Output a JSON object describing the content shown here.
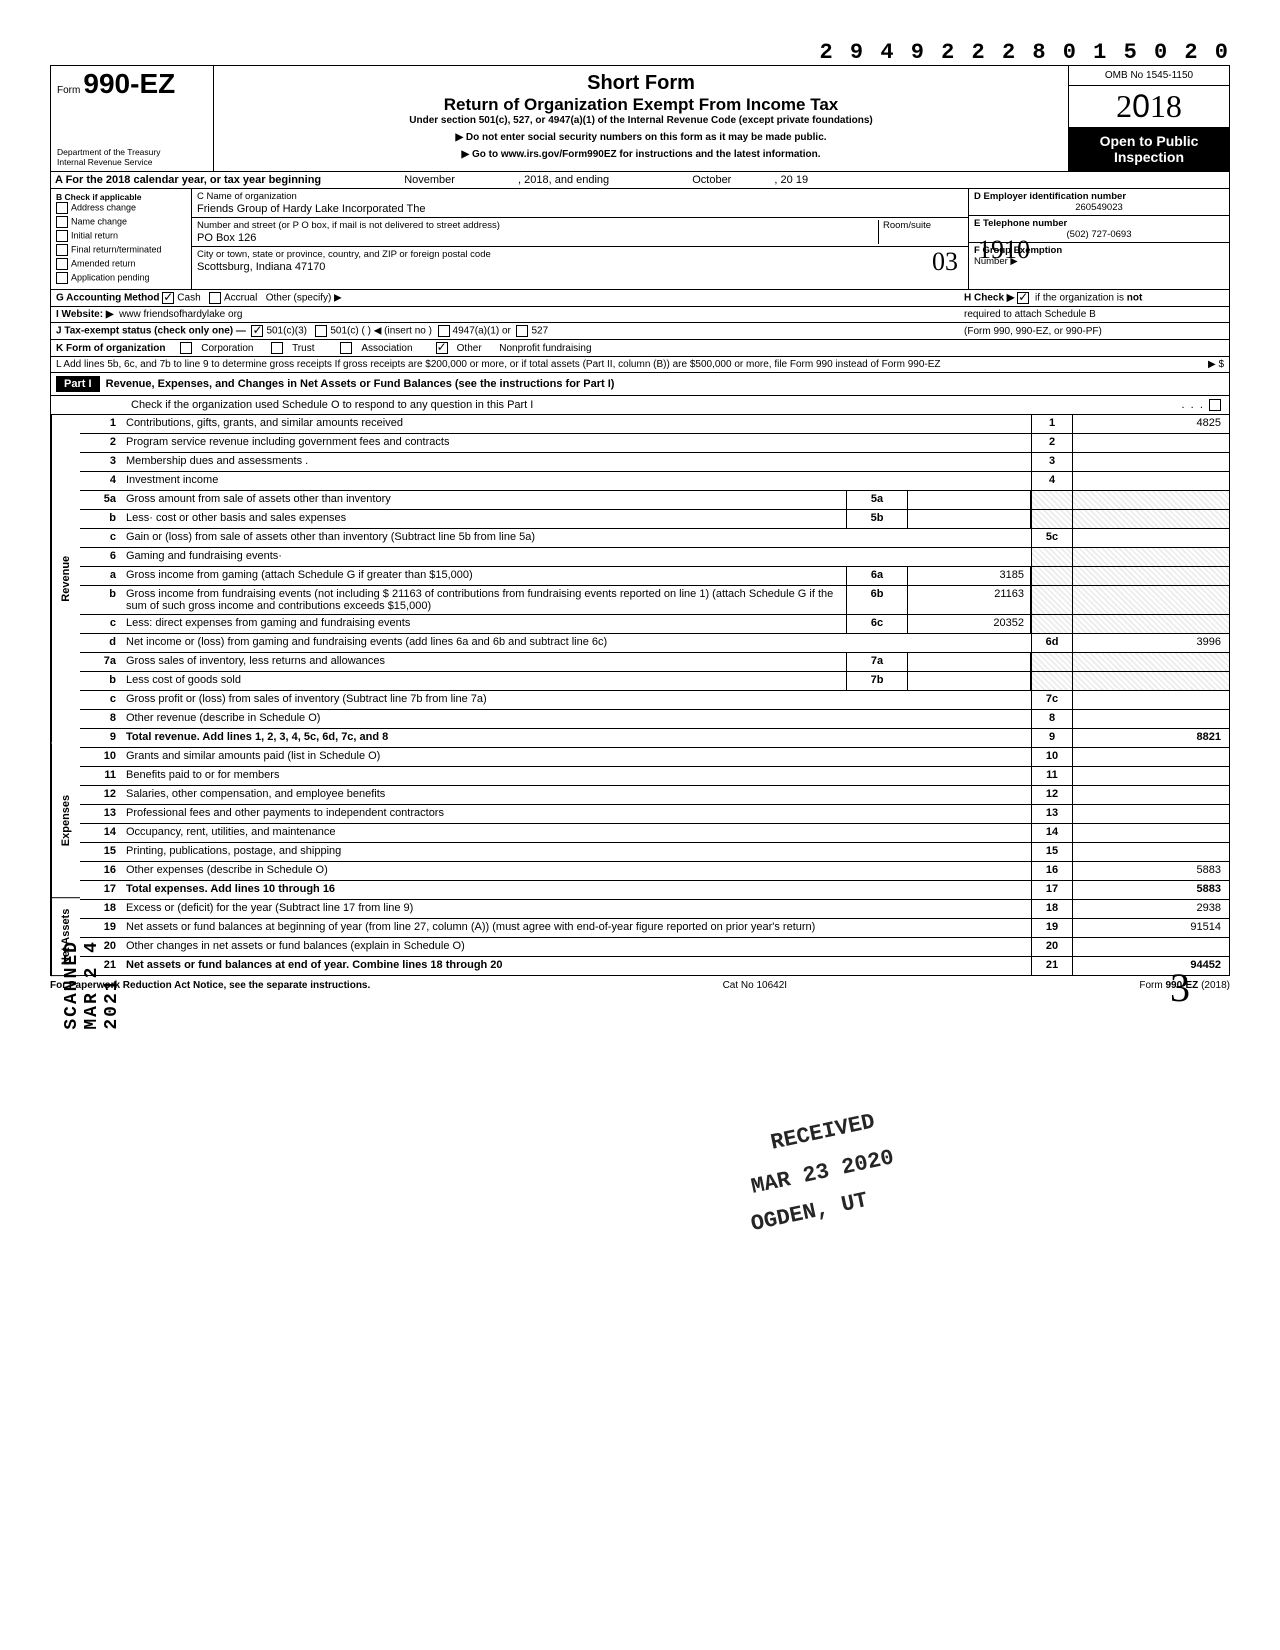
{
  "topNumber": "2 9 4 9 2 2 2 8 0 1 5 0 2 0",
  "header": {
    "formPrefix": "Form",
    "formNumber": "990-EZ",
    "dept": "Department of the Treasury\nInternal Revenue Service",
    "shortForm": "Short Form",
    "title": "Return of Organization Exempt From Income Tax",
    "underSection": "Under section 501(c), 527, or 4947(a)(1) of the Internal Revenue Code (except private foundations)",
    "ssnLine": "▶ Do not enter social security numbers on this form as it may be made public.",
    "gotoLine": "▶ Go to www.irs.gov/Form990EZ for instructions and the latest information.",
    "omb": "OMB No 1545-1150",
    "year": "2018",
    "openPublic": "Open to Public Inspection"
  },
  "rowA": {
    "label": "A For the 2018 calendar year, or tax year beginning",
    "month": "November",
    "mid": ", 2018, and ending",
    "monthEnd": "October",
    "yearEnd": ", 20   19"
  },
  "B": {
    "label": "B  Check if applicable",
    "items": [
      "Address change",
      "Name change",
      "Initial return",
      "Final return/terminated",
      "Amended return",
      "Application pending"
    ]
  },
  "C": {
    "nameLbl": "C  Name of organization",
    "name": "Friends Group of Hardy Lake Incorporated The",
    "streetLbl": "Number and street (or P O  box, if mail is not delivered to street address)",
    "roomLbl": "Room/suite",
    "street": "PO Box 126",
    "cityLbl": "City or town, state or province, country, and ZIP or foreign postal code",
    "city": "Scottsburg, Indiana 47170"
  },
  "D": {
    "lbl": "D Employer identification number",
    "val": "260549023"
  },
  "E": {
    "lbl": "E Telephone number",
    "val": "(502) 727-0693"
  },
  "F": {
    "lbl": "F Group Exemption",
    "lbl2": "Number ▶"
  },
  "G": {
    "lbl": "G  Accounting Method",
    "opts": [
      "Cash",
      "Accrual"
    ],
    "other": "Other (specify) ▶",
    "checked": 0
  },
  "H": {
    "lbl": "H  Check ▶",
    "txt": "if the organization is not required to attach Schedule B (Form 990, 990-EZ, or 990-PF)",
    "checked": true
  },
  "I": {
    "lbl": "I  Website: ▶",
    "val": "www friendsofhardylake org"
  },
  "J": {
    "lbl": "J  Tax-exempt status (check only one) —",
    "opts": [
      "501(c)(3)",
      "501(c) (        ) ◀ (insert no )",
      "4947(a)(1) or",
      "527"
    ],
    "checked": 0
  },
  "K": {
    "lbl": "K  Form of organization",
    "opts": [
      "Corporation",
      "Trust",
      "Association",
      "Other"
    ],
    "checked": 3,
    "otherTxt": "Nonprofit fundraising"
  },
  "L": {
    "txt": "L  Add lines 5b, 6c, and 7b to line 9 to determine gross receipts  If gross receipts are $200,000 or more, or if total assets (Part II, column (B)) are $500,000 or more, file Form 990 instead of Form 990-EZ",
    "arrow": "▶   $"
  },
  "part1": {
    "header": "Part I",
    "title": "Revenue, Expenses, and Changes in Net Assets or Fund Balances (see the instructions for Part I)",
    "check": "Check if the organization used Schedule O to respond to any question in this Part I"
  },
  "sideLabels": {
    "rev": "Revenue",
    "exp": "Expenses",
    "net": "Net Assets"
  },
  "lines": [
    {
      "n": "1",
      "d": "Contributions, gifts, grants, and similar amounts received",
      "rn": "1",
      "v": "4825"
    },
    {
      "n": "2",
      "d": "Program service revenue including government fees and contracts",
      "rn": "2",
      "v": ""
    },
    {
      "n": "3",
      "d": "Membership dues and assessments .",
      "rn": "3",
      "v": ""
    },
    {
      "n": "4",
      "d": "Investment income",
      "rn": "4",
      "v": ""
    },
    {
      "n": "5a",
      "d": "Gross amount from sale of assets other than inventory",
      "mb": "5a",
      "mv": ""
    },
    {
      "n": "b",
      "d": "Less· cost or other basis and sales expenses",
      "mb": "5b",
      "mv": ""
    },
    {
      "n": "c",
      "d": "Gain or (loss) from sale of assets other than inventory (Subtract line 5b from line 5a)",
      "rn": "5c",
      "v": ""
    },
    {
      "n": "6",
      "d": "Gaming and fundraising events·"
    },
    {
      "n": "a",
      "d": "Gross income from gaming (attach Schedule G if greater than $15,000)",
      "mb": "6a",
      "mv": "3185"
    },
    {
      "n": "b",
      "d": "Gross income from fundraising events (not including  $             21163 of contributions from fundraising events reported on line 1) (attach Schedule G if the sum of such gross income and contributions exceeds $15,000)",
      "mb": "6b",
      "mv": "21163"
    },
    {
      "n": "c",
      "d": "Less: direct expenses from gaming and fundraising events",
      "mb": "6c",
      "mv": "20352"
    },
    {
      "n": "d",
      "d": "Net income or (loss) from gaming and fundraising events (add lines 6a and 6b and subtract line 6c)",
      "rn": "6d",
      "v": "3996"
    },
    {
      "n": "7a",
      "d": "Gross sales of inventory, less returns and allowances",
      "mb": "7a",
      "mv": ""
    },
    {
      "n": "b",
      "d": "Less  cost of goods sold",
      "mb": "7b",
      "mv": ""
    },
    {
      "n": "c",
      "d": "Gross profit or (loss) from sales of inventory (Subtract line 7b from line 7a)",
      "rn": "7c",
      "v": ""
    },
    {
      "n": "8",
      "d": "Other revenue (describe in Schedule O)",
      "rn": "8",
      "v": ""
    },
    {
      "n": "9",
      "d": "Total revenue. Add lines 1, 2, 3, 4, 5c, 6d, 7c, and 8",
      "rn": "9",
      "v": "8821",
      "bold": true
    },
    {
      "n": "10",
      "d": "Grants and similar amounts paid (list in Schedule O)",
      "rn": "10",
      "v": ""
    },
    {
      "n": "11",
      "d": "Benefits paid to or for members",
      "rn": "11",
      "v": ""
    },
    {
      "n": "12",
      "d": "Salaries, other compensation, and employee benefits",
      "rn": "12",
      "v": ""
    },
    {
      "n": "13",
      "d": "Professional fees and other payments to independent contractors",
      "rn": "13",
      "v": ""
    },
    {
      "n": "14",
      "d": "Occupancy, rent, utilities, and maintenance",
      "rn": "14",
      "v": ""
    },
    {
      "n": "15",
      "d": "Printing, publications, postage, and shipping",
      "rn": "15",
      "v": ""
    },
    {
      "n": "16",
      "d": "Other expenses (describe in Schedule O)",
      "rn": "16",
      "v": "5883"
    },
    {
      "n": "17",
      "d": "Total expenses. Add lines 10 through 16",
      "rn": "17",
      "v": "5883",
      "bold": true
    },
    {
      "n": "18",
      "d": "Excess or (deficit) for the year (Subtract line 17 from line 9)",
      "rn": "18",
      "v": "2938"
    },
    {
      "n": "19",
      "d": "Net assets or fund balances at beginning of year (from line 27, column (A)) (must agree with end-of-year figure reported on prior year's return)",
      "rn": "19",
      "v": "91514"
    },
    {
      "n": "20",
      "d": "Other changes in net assets or fund balances (explain in Schedule O)",
      "rn": "20",
      "v": ""
    },
    {
      "n": "21",
      "d": "Net assets or fund balances at end of year. Combine lines 18 through 20",
      "rn": "21",
      "v": "94452",
      "bold": true
    }
  ],
  "footer": {
    "left": "For Paperwork Reduction Act Notice, see the separate instructions.",
    "mid": "Cat  No  10642I",
    "right": "Form 990-EZ (2018)"
  },
  "stamps": {
    "s1": "RECEIVED",
    "s2": "MAR 23 2020",
    "s3": "OGDEN, UT"
  },
  "scanned": "SCANNED MAR 2 4 2021",
  "handwritten": {
    "code": "1910",
    "o3": "03",
    "big3": "3"
  }
}
